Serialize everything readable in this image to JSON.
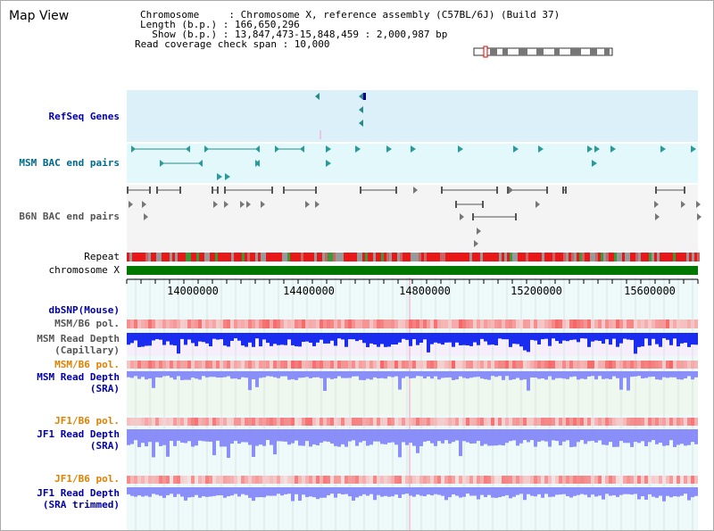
{
  "window_title": "Map View",
  "info": {
    "chromosome_line": "Chromosome     : Chromosome X, reference assembly (C57BL/6J) (Build 37)",
    "length_line": "Length (b.p.) : 166,650,296",
    "show_line": "  Show (b.p.) : 13,847,473-15,848,459 : 2,000,987 bp",
    "coverage_line": "Read coverage check span : 10,000"
  },
  "tracks": {
    "refseq": "RefSeq Genes",
    "msm_bac": "MSM BAC end pairs",
    "b6n_bac": "B6N BAC end pairs",
    "repeat": "Repeat",
    "chromosome": "chromosome X",
    "dbsnp": "dbSNP(Mouse)",
    "msm_b6_pol_1": "MSM/B6 pol.",
    "msm_depth_cap_1": "MSM Read Depth",
    "msm_depth_cap_2": "(Capillary)",
    "msm_b6_pol_2": "MSM/B6 pol.",
    "msm_depth_sra_1": "MSM Read Depth",
    "msm_depth_sra_2": "(SRA)",
    "jf1_b6_pol_1": "JF1/B6 pol.",
    "jf1_depth_sra_1": "JF1 Read Depth",
    "jf1_depth_sra_2": "(SRA)",
    "jf1_b6_pol_2": "JF1/B6 pol.",
    "jf1_depth_trim_1": "JF1 Read Depth",
    "jf1_depth_trim_2": "(SRA trimmed)"
  },
  "axis": {
    "ticks": [
      "14000000",
      "14400000",
      "14800000",
      "15200000",
      "15600000"
    ]
  },
  "colors": {
    "refseq_bg": "#dcf0fa",
    "msm_bac_bg": "#e2f8fa",
    "b6n_bac_bg": "#f4f4f4",
    "chromosome": "#007800",
    "depth_capillary": "#1a2cf0",
    "depth_sra": "#8a8ef8",
    "pol_red": "#f06060"
  }
}
